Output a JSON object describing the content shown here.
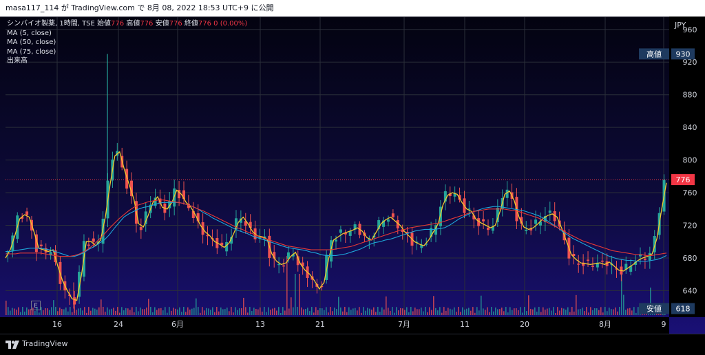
{
  "header": {
    "text": "masa117_114 が TradingView.com で 8月 08, 2022 18:53 UTC+9 に公開"
  },
  "legend": {
    "symbol_line": "シンバイオ製薬, 1時間, TSE",
    "open_label": "始値",
    "open_value": "776",
    "high_label": "高値",
    "high_value": "776",
    "low_label": "安値",
    "low_value": "776",
    "close_label": "終値",
    "close_value": "776",
    "change": "0 (0.00%)",
    "ma5": "MA (5, close)",
    "ma50": "MA (50, close)",
    "ma75": "MA (75, close)",
    "volume": "出来高"
  },
  "currency": "JPY",
  "earnings_badge": "E",
  "price_axis": {
    "ticks": [
      960,
      920,
      880,
      840,
      800,
      760,
      720,
      680,
      640
    ],
    "high_tag": {
      "label": "高値",
      "value": "930"
    },
    "current_tag": {
      "value": "776"
    },
    "low_tag": {
      "label": "安値",
      "value": "618"
    }
  },
  "time_axis": {
    "labels": [
      "16",
      "24",
      "6月",
      "13",
      "21",
      "7月",
      "11",
      "20",
      "8月",
      "9"
    ]
  },
  "footer": {
    "brand": "TradingView"
  },
  "colors": {
    "up": "#26a69a",
    "down": "#ef5350",
    "ma5": "#f0c92c",
    "ma50": "#1ea6d8",
    "ma75": "#e53935"
  },
  "chart_data": {
    "type": "line",
    "title": "シンバイオ製薬, 1時間, TSE",
    "ylim": [
      610,
      975
    ],
    "y_ticks": [
      960,
      920,
      880,
      840,
      800,
      760,
      720,
      680,
      640
    ],
    "x_labels": [
      "16",
      "24",
      "6月",
      "13",
      "21",
      "7月",
      "11",
      "20",
      "8月",
      "9"
    ],
    "high": 930,
    "low": 618,
    "last": 776,
    "series": [
      {
        "name": "MA (5, close)",
        "values": [
          680,
          690,
          708,
          728,
          733,
          730,
          712,
          692,
          690,
          688,
          690,
          670,
          652,
          640,
          630,
          628,
          660,
          700,
          700,
          695,
          702,
          730,
          770,
          805,
          810,
          788,
          770,
          752,
          722,
          718,
          732,
          748,
          755,
          742,
          740,
          748,
          763,
          758,
          748,
          742,
          732,
          720,
          712,
          707,
          700,
          697,
          693,
          698,
          710,
          724,
          730,
          722,
          712,
          707,
          706,
          703,
          685,
          676,
          672,
          674,
          682,
          687,
          673,
          665,
          660,
          652,
          642,
          650,
          680,
          702,
          706,
          710,
          712,
          714,
          717,
          713,
          705,
          702,
          712,
          722,
          727,
          730,
          725,
          720,
          712,
          706,
          700,
          697,
          695,
          702,
          712,
          722,
          745,
          757,
          760,
          758,
          748,
          740,
          737,
          727,
          723,
          720,
          717,
          720,
          737,
          758,
          762,
          750,
          730,
          718,
          715,
          717,
          722,
          728,
          732,
          734,
          730,
          716,
          700,
          684,
          678,
          674,
          673,
          672,
          673,
          674,
          672,
          675,
          670,
          665,
          664,
          668,
          672,
          677,
          680,
          682,
          685,
          704,
          740,
          772
        ]
      },
      {
        "name": "MA (50, close)",
        "values": [
          688,
          688,
          689,
          690,
          691,
          692,
          692,
          692,
          691,
          690,
          688,
          686,
          684,
          682,
          682,
          684,
          687,
          691,
          694,
          698,
          702,
          708,
          716,
          723,
          730,
          734,
          737,
          740,
          742,
          743,
          745,
          747,
          748,
          748,
          748,
          748,
          747,
          745,
          743,
          740,
          736,
          733,
          729,
          726,
          723,
          720,
          717,
          714,
          712,
          710,
          707,
          705,
          703,
          701,
          699,
          697,
          695,
          693,
          692,
          691,
          690,
          689,
          687,
          686,
          684,
          683,
          683,
          683,
          684,
          685,
          687,
          689,
          691,
          694,
          697,
          699,
          700,
          702,
          703,
          705,
          707,
          709,
          711,
          713,
          714,
          715,
          715,
          715,
          716,
          717,
          720,
          724,
          728,
          731,
          734,
          737,
          739,
          741,
          742,
          743,
          743,
          742,
          741,
          740,
          739,
          738,
          736,
          734,
          732,
          729,
          725,
          721,
          717,
          712,
          708,
          704,
          701,
          698,
          695,
          692,
          689,
          686,
          683,
          681,
          679,
          678,
          677,
          677,
          676,
          676,
          676,
          677,
          678,
          680,
          683
        ]
      },
      {
        "name": "MA (75, close)",
        "values": [
          685,
          685,
          685,
          686,
          686,
          686,
          686,
          686,
          685,
          684,
          683,
          682,
          682,
          682,
          683,
          685,
          688,
          692,
          697,
          703,
          709,
          716,
          722,
          728,
          733,
          738,
          742,
          745,
          747,
          749,
          750,
          751,
          751,
          750,
          749,
          748,
          747,
          745,
          743,
          740,
          738,
          735,
          732,
          729,
          726,
          723,
          720,
          717,
          715,
          712,
          710,
          707,
          705,
          703,
          701,
          699,
          697,
          695,
          694,
          693,
          692,
          691,
          690,
          690,
          690,
          690,
          690,
          691,
          692,
          693,
          694,
          696,
          698,
          700,
          702,
          704,
          706,
          708,
          710,
          712,
          714,
          715,
          717,
          718,
          719,
          720,
          721,
          722,
          723,
          725,
          727,
          729,
          731,
          733,
          735,
          737,
          738,
          739,
          740,
          740,
          740,
          740,
          739,
          738,
          737,
          735,
          733,
          731,
          729,
          726,
          723,
          720,
          717,
          714,
          710,
          707,
          704,
          701,
          699,
          697,
          695,
          693,
          691,
          689,
          688,
          687,
          686,
          685,
          684,
          684,
          683,
          683,
          684,
          685,
          686
        ]
      }
    ]
  }
}
